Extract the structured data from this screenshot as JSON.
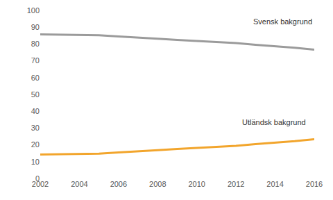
{
  "chart_data": {
    "type": "line",
    "x": [
      2002,
      2003,
      2004,
      2005,
      2006,
      2007,
      2008,
      2009,
      2010,
      2011,
      2012,
      2013,
      2014,
      2015,
      2016
    ],
    "series": [
      {
        "name": "Svensk bakgrund",
        "color": "#9b9b9b",
        "values": [
          85.7,
          85.6,
          85.3,
          85.2,
          84.5,
          84.0,
          83.2,
          82.4,
          81.9,
          81.1,
          80.6,
          79.5,
          78.7,
          77.8,
          76.6
        ]
      },
      {
        "name": "Utländsk bakgrund",
        "color": "#f2a52c",
        "values": [
          14.3,
          14.4,
          14.7,
          14.8,
          15.5,
          16.0,
          16.8,
          17.6,
          18.1,
          18.9,
          19.4,
          20.5,
          21.3,
          22.2,
          23.4
        ]
      }
    ],
    "xlim": [
      2002,
      2016
    ],
    "xticks": [
      2002,
      2004,
      2006,
      2008,
      2010,
      2012,
      2014,
      2016
    ],
    "ylim": [
      0,
      100
    ],
    "yticks": [
      0,
      10,
      20,
      30,
      40,
      50,
      60,
      70,
      80,
      90,
      100
    ],
    "grid": false
  }
}
